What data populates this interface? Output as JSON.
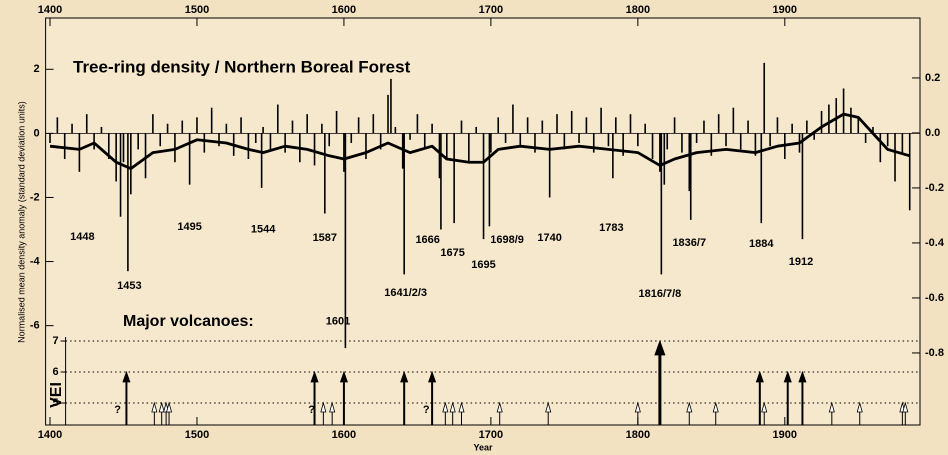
{
  "chart_data": {
    "type": "bar",
    "title": "Tree-ring density / Northern Boreal Forest",
    "ylabel": "Normalised mean density anomaly  (standard deviation units)",
    "xlabel": "Year",
    "xlim": [
      1397,
      1992
    ],
    "xticks": [
      1400,
      1500,
      1600,
      1700,
      1800,
      1900
    ],
    "ylim": [
      -9.1,
      3.6
    ],
    "yticks": [
      -6,
      -4,
      -2,
      0,
      2
    ],
    "y2lim": [
      -1.062,
      0.418
    ],
    "y2ticks": [
      -0.8,
      -0.6,
      -0.4,
      -0.2,
      {
        "value": 0,
        "label": "0.0"
      },
      0.2
    ],
    "color": "#000000",
    "x": [
      1400,
      1405,
      1410,
      1415,
      1420,
      1425,
      1430,
      1435,
      1440,
      1445,
      1448,
      1450,
      1453,
      1455,
      1460,
      1465,
      1470,
      1475,
      1480,
      1485,
      1490,
      1495,
      1500,
      1505,
      1510,
      1515,
      1520,
      1525,
      1530,
      1535,
      1540,
      1544,
      1545,
      1550,
      1555,
      1560,
      1565,
      1570,
      1575,
      1580,
      1585,
      1587,
      1590,
      1595,
      1600,
      1601,
      1605,
      1610,
      1615,
      1620,
      1625,
      1630,
      1632,
      1635,
      1640,
      1641,
      1645,
      1650,
      1655,
      1660,
      1665,
      1666,
      1670,
      1675,
      1680,
      1685,
      1690,
      1695,
      1699,
      1700,
      1705,
      1710,
      1715,
      1720,
      1725,
      1730,
      1735,
      1740,
      1745,
      1750,
      1755,
      1760,
      1765,
      1770,
      1775,
      1780,
      1783,
      1785,
      1790,
      1795,
      1800,
      1805,
      1810,
      1815,
      1816,
      1818,
      1820,
      1825,
      1830,
      1835,
      1836,
      1840,
      1845,
      1850,
      1855,
      1860,
      1865,
      1870,
      1875,
      1880,
      1884,
      1886,
      1890,
      1895,
      1900,
      1905,
      1910,
      1912,
      1915,
      1920,
      1925,
      1930,
      1935,
      1940,
      1945,
      1950,
      1955,
      1960,
      1965,
      1970,
      1975,
      1980,
      1985
    ],
    "values": [
      -0.3,
      0.5,
      -0.8,
      0.3,
      -1.2,
      0.6,
      -0.5,
      0.2,
      -0.8,
      -1.5,
      -2.6,
      -0.9,
      -4.3,
      -1.9,
      -0.5,
      -1.4,
      0.6,
      -0.4,
      0.3,
      -0.9,
      0.4,
      -1.6,
      0.5,
      -0.6,
      0.8,
      -0.4,
      0.3,
      -0.7,
      0.5,
      -0.8,
      -0.3,
      -1.7,
      0.2,
      -0.5,
      0.9,
      -0.6,
      0.4,
      -0.9,
      0.6,
      -1.0,
      0.3,
      -2.5,
      -0.4,
      0.7,
      -1.2,
      -6.7,
      -0.3,
      0.5,
      -0.8,
      0.6,
      -0.5,
      1.2,
      1.7,
      0.2,
      -1.1,
      -4.4,
      -0.2,
      0.6,
      -0.5,
      0.3,
      -1.4,
      -3.0,
      -0.8,
      -2.8,
      0.4,
      -0.9,
      0.2,
      -3.3,
      -2.9,
      -0.6,
      0.5,
      -0.3,
      0.9,
      -0.4,
      0.5,
      -0.6,
      0.4,
      -2.0,
      0.6,
      -0.5,
      0.7,
      -0.3,
      0.5,
      -0.6,
      0.8,
      -0.4,
      -1.4,
      0.5,
      -0.7,
      0.6,
      -0.4,
      0.3,
      -0.8,
      -1.2,
      -4.4,
      -1.6,
      -0.5,
      0.5,
      -0.6,
      -1.8,
      -2.7,
      -0.3,
      0.4,
      -0.7,
      0.6,
      -0.4,
      0.8,
      -0.5,
      0.4,
      -0.7,
      -2.8,
      2.2,
      -0.4,
      0.5,
      -0.8,
      0.3,
      -0.6,
      -3.3,
      0.4,
      -0.2,
      0.7,
      0.9,
      1.1,
      1.4,
      0.8,
      0.5,
      -0.3,
      0.2,
      -0.9,
      -0.4,
      -1.5,
      -0.6,
      -2.4
    ],
    "smooth": {
      "x": [
        1400,
        1420,
        1430,
        1445,
        1455,
        1470,
        1485,
        1500,
        1520,
        1535,
        1545,
        1560,
        1575,
        1590,
        1600,
        1615,
        1630,
        1645,
        1660,
        1670,
        1685,
        1695,
        1705,
        1720,
        1740,
        1760,
        1780,
        1800,
        1815,
        1825,
        1840,
        1860,
        1880,
        1895,
        1910,
        1925,
        1940,
        1950,
        1960,
        1970,
        1985
      ],
      "values": [
        -0.4,
        -0.5,
        -0.3,
        -0.9,
        -1.1,
        -0.6,
        -0.5,
        -0.2,
        -0.3,
        -0.5,
        -0.6,
        -0.4,
        -0.5,
        -0.7,
        -0.8,
        -0.6,
        -0.3,
        -0.6,
        -0.4,
        -0.8,
        -0.9,
        -0.9,
        -0.5,
        -0.4,
        -0.5,
        -0.4,
        -0.5,
        -0.6,
        -1.0,
        -0.8,
        -0.6,
        -0.5,
        -0.6,
        -0.4,
        -0.3,
        0.2,
        0.6,
        0.5,
        0.0,
        -0.5,
        -0.7
      ]
    },
    "annotations": [
      {
        "text": "1448",
        "x": 1422,
        "y": -3.23
      },
      {
        "text": "1453",
        "x": 1454,
        "y": -4.76
      },
      {
        "text": "1495",
        "x": 1495,
        "y": -2.92
      },
      {
        "text": "1544",
        "x": 1545,
        "y": -3.01
      },
      {
        "text": "1587",
        "x": 1587,
        "y": -3.26
      },
      {
        "text": "1601",
        "x": 1596,
        "y": -5.88
      },
      {
        "text": "1641/2/3",
        "x": 1642,
        "y": -4.98
      },
      {
        "text": "1666",
        "x": 1657,
        "y": -3.33
      },
      {
        "text": "1675",
        "x": 1674,
        "y": -3.73
      },
      {
        "text": "1695",
        "x": 1695,
        "y": -4.11
      },
      {
        "text": "1698/9",
        "x": 1711,
        "y": -3.33
      },
      {
        "text": "1740",
        "x": 1740,
        "y": -3.26
      },
      {
        "text": "1783",
        "x": 1782,
        "y": -2.95
      },
      {
        "text": "1816/7/8",
        "x": 1815,
        "y": -5.01
      },
      {
        "text": "1836/7",
        "x": 1835,
        "y": -3.42
      },
      {
        "text": "1884",
        "x": 1884,
        "y": -3.45
      },
      {
        "text": "1912",
        "x": 1911,
        "y": -4.01
      }
    ],
    "volcanoes": {
      "title": "Major volcanoes:",
      "axis_label": "VEI",
      "vlim": [
        4.29,
        7.13
      ],
      "vticks": [
        5,
        6,
        7
      ],
      "x": [
        1452,
        1471,
        1476,
        1479,
        1481,
        1580,
        1586,
        1592,
        1600,
        1641,
        1660,
        1669,
        1674,
        1680,
        1706,
        1739,
        1800,
        1815,
        1835,
        1853,
        1883,
        1886,
        1902,
        1912,
        1932,
        1951,
        1980,
        1982
      ],
      "vei": [
        6,
        5,
        5,
        5,
        5,
        6,
        5,
        5,
        6,
        6,
        6,
        5,
        5,
        5,
        5,
        5,
        5,
        7,
        5,
        5,
        6,
        5,
        6,
        6,
        5,
        5,
        5,
        5
      ],
      "uncertain": [
        {
          "text": "?",
          "x": 1446
        },
        {
          "text": "?",
          "x": 1578
        },
        {
          "text": "?",
          "x": 1656
        }
      ]
    }
  }
}
